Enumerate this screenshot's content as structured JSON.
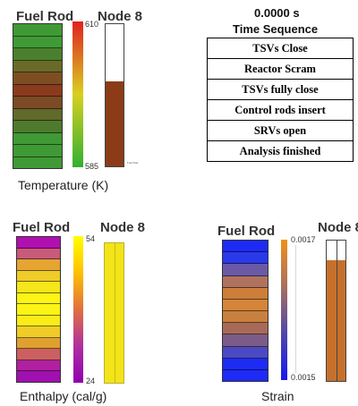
{
  "time_panel": {
    "time": "0.0000 s",
    "heading": "Time Sequence",
    "events": [
      "TSVs Close",
      "Reactor Scram",
      "TSVs fully close",
      "Control rods insert",
      "SRVs open",
      "Analysis finished"
    ]
  },
  "panels": {
    "temperature": {
      "rod_title": "Fuel Rod",
      "node_title": "Node 8",
      "caption": "Temperature (K)",
      "scale_max": "610",
      "scale_min": "585",
      "node_label": "Fuel Rod",
      "node_level": 0.6,
      "node_fill": "#8b3c16",
      "colorbar": [
        "#e02020",
        "#d8d020",
        "#30b030"
      ],
      "segments": [
        "#3f9a35",
        "#3f9a35",
        "#4a7f2f",
        "#6a6a28",
        "#7e4e22",
        "#8b3a1d",
        "#7c4a24",
        "#5f6a2b",
        "#4e7a2e",
        "#3f9a35",
        "#3f9a35",
        "#3f9a35"
      ]
    },
    "enthalpy": {
      "rod_title": "Fuel Rod",
      "node_title": "Node 8",
      "caption": "Enthalpy (cal/g)",
      "scale_max": "54",
      "scale_min": "24",
      "node_level": 1.0,
      "node_fill": "#f2e418",
      "colorbar": [
        "#ffff00",
        "#ffc000",
        "#e07040",
        "#b030a0",
        "#9000b0"
      ],
      "segments": [
        "#b010b0",
        "#c85a7a",
        "#e5a530",
        "#f0cc28",
        "#f7e61a",
        "#fcf414",
        "#fcf414",
        "#f9ec18",
        "#f0cc28",
        "#e0a030",
        "#cc6060",
        "#b020a0",
        "#a010b0"
      ]
    },
    "strain": {
      "rod_title": "Fuel Rod",
      "node_title": "Node 8",
      "caption": "Strain",
      "scale_max": "0.0017",
      "scale_min": "0.0015",
      "node_level": 0.86,
      "node_fill": "#c6702c",
      "colorbar": [
        "#f09018",
        "#a87060",
        "#5048a8",
        "#1818f0"
      ],
      "segments": [
        "#1e2bf5",
        "#2a3aea",
        "#6a5aa6",
        "#b0725e",
        "#cc7e3a",
        "#d4853a",
        "#c8803e",
        "#a86a58",
        "#7b5b88",
        "#4a4ac4",
        "#1e2bf5",
        "#1e2bf5"
      ]
    }
  }
}
